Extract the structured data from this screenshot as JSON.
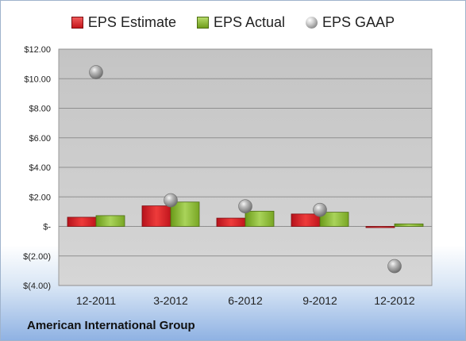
{
  "legend": {
    "estimate": "EPS Estimate",
    "actual": "EPS Actual",
    "gaap": "EPS GAAP"
  },
  "footer": {
    "company": "American International Group"
  },
  "colors": {
    "estimate": "#d42a2a",
    "actual": "#8dbb3a",
    "gaap": "#9a9a9a",
    "plot_bg": "#c9c9c9"
  },
  "chart_data": {
    "type": "bar",
    "categories": [
      "12-2011",
      "3-2012",
      "6-2012",
      "9-2012",
      "12-2012"
    ],
    "series": [
      {
        "name": "EPS Estimate",
        "type": "bar",
        "values": [
          0.62,
          1.39,
          0.56,
          0.84,
          -0.05
        ]
      },
      {
        "name": "EPS Actual",
        "type": "bar",
        "values": [
          0.73,
          1.65,
          1.03,
          0.96,
          0.17
        ]
      },
      {
        "name": "EPS GAAP",
        "type": "scatter",
        "values": [
          10.44,
          1.77,
          1.36,
          1.12,
          -2.69
        ]
      }
    ],
    "yticks": [
      {
        "value": 12,
        "label": "$12.00"
      },
      {
        "value": 10,
        "label": "$10.00"
      },
      {
        "value": 8,
        "label": "$8.00"
      },
      {
        "value": 6,
        "label": "$6.00"
      },
      {
        "value": 4,
        "label": "$4.00"
      },
      {
        "value": 2,
        "label": "$2.00"
      },
      {
        "value": 0,
        "label": "$-"
      },
      {
        "value": -2,
        "label": "$(2.00)"
      },
      {
        "value": -4,
        "label": "$(4.00)"
      }
    ],
    "ylim": [
      -4,
      12
    ],
    "grid": true,
    "legend_position": "top"
  }
}
